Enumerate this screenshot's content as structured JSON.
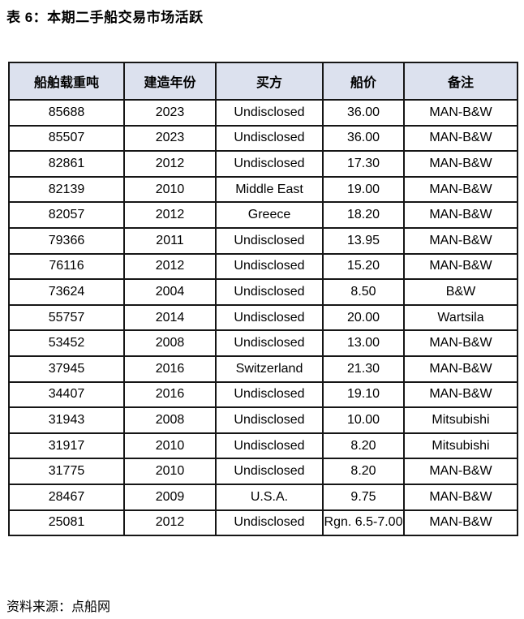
{
  "page": {
    "title": "表 6：本期二手船交易市场活跃",
    "source_note": "资料来源：点船网"
  },
  "colors": {
    "header_bg": "#dce1ee",
    "border": "#161616",
    "text": "#000000",
    "page_bg": "#ffffff"
  },
  "table": {
    "columns": [
      "船舶载重吨",
      "建造年份",
      "买方",
      "船价",
      "备注"
    ],
    "rows": [
      [
        "85688",
        "2023",
        "Undisclosed",
        "36.00",
        "MAN-B&W"
      ],
      [
        "85507",
        "2023",
        "Undisclosed",
        "36.00",
        "MAN-B&W"
      ],
      [
        "82861",
        "2012",
        "Undisclosed",
        "17.30",
        "MAN-B&W"
      ],
      [
        "82139",
        "2010",
        "Middle East",
        "19.00",
        "MAN-B&W"
      ],
      [
        "82057",
        "2012",
        "Greece",
        "18.20",
        "MAN-B&W"
      ],
      [
        "79366",
        "2011",
        "Undisclosed",
        "13.95",
        "MAN-B&W"
      ],
      [
        "76116",
        "2012",
        "Undisclosed",
        "15.20",
        "MAN-B&W"
      ],
      [
        "73624",
        "2004",
        "Undisclosed",
        "8.50",
        "B&W"
      ],
      [
        "55757",
        "2014",
        "Undisclosed",
        "20.00",
        "Wartsila"
      ],
      [
        "53452",
        "2008",
        "Undisclosed",
        "13.00",
        "MAN-B&W"
      ],
      [
        "37945",
        "2016",
        "Switzerland",
        "21.30",
        "MAN-B&W"
      ],
      [
        "34407",
        "2016",
        "Undisclosed",
        "19.10",
        "MAN-B&W"
      ],
      [
        "31943",
        "2008",
        "Undisclosed",
        "10.00",
        "Mitsubishi"
      ],
      [
        "31917",
        "2010",
        "Undisclosed",
        "8.20",
        "Mitsubishi"
      ],
      [
        "31775",
        "2010",
        "Undisclosed",
        "8.20",
        "MAN-B&W"
      ],
      [
        "28467",
        "2009",
        "U.S.A.",
        "9.75",
        "MAN-B&W"
      ],
      [
        "25081",
        "2012",
        "Undisclosed",
        "Rgn. 6.5-7.00",
        "MAN-B&W"
      ]
    ]
  },
  "chart_data": {
    "type": "table",
    "title": "表 6：本期二手船交易市场活跃",
    "columns": [
      "船舶载重吨",
      "建造年份",
      "买方",
      "船价",
      "备注"
    ],
    "rows": [
      [
        "85688",
        "2023",
        "Undisclosed",
        "36.00",
        "MAN-B&W"
      ],
      [
        "85507",
        "2023",
        "Undisclosed",
        "36.00",
        "MAN-B&W"
      ],
      [
        "82861",
        "2012",
        "Undisclosed",
        "17.30",
        "MAN-B&W"
      ],
      [
        "82139",
        "2010",
        "Middle East",
        "19.00",
        "MAN-B&W"
      ],
      [
        "82057",
        "2012",
        "Greece",
        "18.20",
        "MAN-B&W"
      ],
      [
        "79366",
        "2011",
        "Undisclosed",
        "13.95",
        "MAN-B&W"
      ],
      [
        "76116",
        "2012",
        "Undisclosed",
        "15.20",
        "MAN-B&W"
      ],
      [
        "73624",
        "2004",
        "Undisclosed",
        "8.50",
        "B&W"
      ],
      [
        "55757",
        "2014",
        "Undisclosed",
        "20.00",
        "Wartsila"
      ],
      [
        "53452",
        "2008",
        "Undisclosed",
        "13.00",
        "MAN-B&W"
      ],
      [
        "37945",
        "2016",
        "Switzerland",
        "21.30",
        "MAN-B&W"
      ],
      [
        "34407",
        "2016",
        "Undisclosed",
        "19.10",
        "MAN-B&W"
      ],
      [
        "31943",
        "2008",
        "Undisclosed",
        "10.00",
        "Mitsubishi"
      ],
      [
        "31917",
        "2010",
        "Undisclosed",
        "8.20",
        "Mitsubishi"
      ],
      [
        "31775",
        "2010",
        "Undisclosed",
        "8.20",
        "MAN-B&W"
      ],
      [
        "28467",
        "2009",
        "U.S.A.",
        "9.75",
        "MAN-B&W"
      ],
      [
        "25081",
        "2012",
        "Undisclosed",
        "Rgn. 6.5-7.00",
        "MAN-B&W"
      ]
    ],
    "source": "资料来源：点船网"
  }
}
